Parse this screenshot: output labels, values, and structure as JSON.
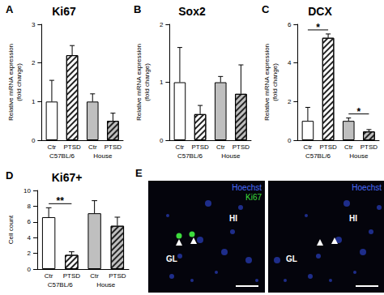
{
  "chart_data": [
    {
      "type": "bar",
      "panel": "A",
      "title": "Ki67",
      "y_label": "Relative mRNA expression\n(fold change)",
      "categories": [
        "C57BL/6",
        "House"
      ],
      "series": [
        {
          "name": "Ctr",
          "colors": [
            "#ffffff",
            "#bfbfbf"
          ],
          "values": [
            1.0,
            1.0
          ],
          "errors": [
            0.55,
            0.2
          ]
        },
        {
          "name": "PTSD",
          "colors": [
            "#ffffff",
            "#bfbfbf"
          ],
          "marker": "hatch",
          "values": [
            2.2,
            0.5
          ],
          "errors": [
            0.25,
            0.2
          ]
        }
      ],
      "ylim": [
        0,
        3
      ],
      "yticks": [
        0,
        1,
        2,
        3
      ],
      "grid": false
    },
    {
      "type": "bar",
      "panel": "B",
      "title": "Sox2",
      "y_label": "Relative mRNA expression\n(fold change)",
      "categories": [
        "C57BL/6",
        "House"
      ],
      "series": [
        {
          "name": "Ctr",
          "colors": [
            "#ffffff",
            "#bfbfbf"
          ],
          "values": [
            1.0,
            1.0
          ],
          "errors": [
            0.6,
            0.1
          ]
        },
        {
          "name": "PTSD",
          "colors": [
            "#ffffff",
            "#bfbfbf"
          ],
          "marker": "hatch",
          "values": [
            0.45,
            0.8
          ],
          "errors": [
            0.15,
            0.5
          ]
        }
      ],
      "ylim": [
        0,
        2
      ],
      "yticks": [
        0,
        1,
        2
      ],
      "grid": false
    },
    {
      "type": "bar",
      "panel": "C",
      "title": "DCX",
      "y_label": "Relative mRNA expression\n(fold change)",
      "categories": [
        "C57BL/6",
        "House"
      ],
      "series": [
        {
          "name": "Ctr",
          "colors": [
            "#ffffff",
            "#bfbfbf"
          ],
          "values": [
            1.0,
            1.0
          ],
          "errors": [
            0.7,
            0.15
          ]
        },
        {
          "name": "PTSD",
          "colors": [
            "#ffffff",
            "#bfbfbf"
          ],
          "marker": "hatch",
          "values": [
            5.3,
            0.45
          ],
          "errors": [
            0.2,
            0.1
          ]
        }
      ],
      "annotations": [
        {
          "text": "*",
          "group": "C57BL/6"
        },
        {
          "text": "*",
          "group": "House"
        }
      ],
      "ylim": [
        0,
        6
      ],
      "yticks": [
        0,
        2,
        4,
        6
      ],
      "grid": false
    },
    {
      "type": "bar",
      "panel": "D",
      "title": "Ki67+",
      "y_label": "Cell count",
      "categories": [
        "C57BL/6",
        "House"
      ],
      "series": [
        {
          "name": "Ctr",
          "colors": [
            "#ffffff",
            "#bfbfbf"
          ],
          "values": [
            6.6,
            7.1
          ],
          "errors": [
            1.2,
            1.6
          ]
        },
        {
          "name": "PTSD",
          "colors": [
            "#ffffff",
            "#bfbfbf"
          ],
          "marker": "hatch",
          "values": [
            1.8,
            5.5
          ],
          "errors": [
            0.4,
            1.1
          ]
        }
      ],
      "annotations": [
        {
          "text": "**",
          "group": "C57BL/6"
        }
      ],
      "ylim": [
        0,
        10
      ],
      "yticks": [
        0,
        2,
        4,
        6,
        8,
        10
      ],
      "grid": false
    }
  ],
  "image_panel": {
    "panel": "E",
    "images": [
      {
        "stains": [
          {
            "text": "Hoechst",
            "color": "#4a6cff"
          },
          {
            "text": "Ki67",
            "color": "#3ddc3d"
          }
        ],
        "regions": [
          "HI",
          "GL"
        ]
      },
      {
        "stains": [
          {
            "text": "Hoechst",
            "color": "#4a6cff"
          }
        ],
        "regions": [
          "HI",
          "GL"
        ]
      }
    ]
  }
}
